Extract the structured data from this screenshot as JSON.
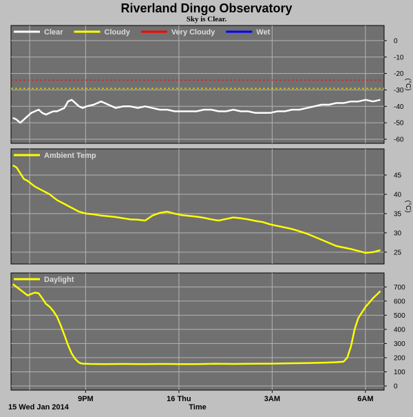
{
  "page": {
    "title": "Riverland Dingo Observatory",
    "subtitle": "Sky is Clear."
  },
  "colors": {
    "plot_bg": "#707070",
    "page_bg": "#c0c0c0",
    "grid": "#b4b4b4",
    "clear": "#ffffff",
    "cloudy": "#ffff00",
    "very_cloudy": "#ff0000",
    "wet": "#0000ff"
  },
  "x_axis": {
    "label": "Time",
    "start_label": "15 Wed Jan 2014",
    "ticks": [
      {
        "label": "9PM",
        "t": 0.2
      },
      {
        "label": "16 Thu",
        "t": 0.45
      },
      {
        "label": "3AM",
        "t": 0.7
      },
      {
        "label": "6AM",
        "t": 0.95
      }
    ],
    "gridlines": [
      0.05,
      0.2,
      0.45,
      0.7,
      0.95
    ]
  },
  "chart_data": [
    {
      "type": "line",
      "panel": "sky",
      "ylabel": "(°C)",
      "ylim": [
        -60,
        5
      ],
      "yticks": [
        0,
        -10,
        -20,
        -30,
        -40,
        -50,
        -60
      ],
      "legend": [
        {
          "name": "Clear",
          "color": "#ffffff"
        },
        {
          "name": "Cloudy",
          "color": "#ffff00"
        },
        {
          "name": "Very Cloudy",
          "color": "#ff0000"
        },
        {
          "name": "Wet",
          "color": "#0000ff"
        }
      ],
      "thresholds": [
        {
          "name": "Very Cloudy",
          "value": -24,
          "color": "#ff0000"
        },
        {
          "name": "Cloudy",
          "value": -29,
          "color": "#ffff00"
        }
      ],
      "series": [
        {
          "name": "Clear",
          "color": "#ffffff",
          "x": [
            0,
            0.01,
            0.02,
            0.03,
            0.04,
            0.05,
            0.06,
            0.07,
            0.08,
            0.09,
            0.1,
            0.11,
            0.12,
            0.13,
            0.14,
            0.15,
            0.16,
            0.17,
            0.18,
            0.19,
            0.2,
            0.22,
            0.24,
            0.26,
            0.28,
            0.3,
            0.32,
            0.34,
            0.36,
            0.38,
            0.4,
            0.42,
            0.44,
            0.46,
            0.48,
            0.5,
            0.52,
            0.54,
            0.56,
            0.58,
            0.6,
            0.62,
            0.64,
            0.66,
            0.68,
            0.7,
            0.72,
            0.74,
            0.76,
            0.78,
            0.8,
            0.82,
            0.84,
            0.86,
            0.88,
            0.9,
            0.92,
            0.94,
            0.96,
            0.98,
            1.0
          ],
          "values": [
            -47,
            -48,
            -50,
            -48,
            -46,
            -44,
            -43,
            -42,
            -44,
            -45,
            -44,
            -43,
            -43,
            -42,
            -41,
            -37,
            -36,
            -38,
            -40,
            -41,
            -40,
            -39,
            -37,
            -39,
            -41,
            -40,
            -40,
            -41,
            -40,
            -41,
            -42,
            -42,
            -43,
            -43,
            -43,
            -43,
            -42,
            -42,
            -43,
            -43,
            -42,
            -43,
            -43,
            -44,
            -44,
            -44,
            -43,
            -43,
            -42,
            -42,
            -41,
            -40,
            -39,
            -39,
            -38,
            -38,
            -37,
            -37,
            -36,
            -37,
            -36
          ]
        }
      ]
    },
    {
      "type": "line",
      "panel": "ambient",
      "ylabel": "(°C)",
      "ylim": [
        23,
        50
      ],
      "yticks": [
        45,
        40,
        35,
        30,
        25
      ],
      "legend": [
        {
          "name": "Ambient Temp",
          "color": "#ffff00"
        }
      ],
      "series": [
        {
          "name": "Ambient Temp",
          "color": "#ffff00",
          "x": [
            0,
            0.01,
            0.02,
            0.03,
            0.04,
            0.06,
            0.08,
            0.1,
            0.12,
            0.14,
            0.16,
            0.18,
            0.2,
            0.22,
            0.24,
            0.26,
            0.28,
            0.3,
            0.32,
            0.34,
            0.36,
            0.38,
            0.4,
            0.42,
            0.44,
            0.46,
            0.48,
            0.5,
            0.52,
            0.54,
            0.56,
            0.58,
            0.6,
            0.62,
            0.64,
            0.66,
            0.68,
            0.7,
            0.72,
            0.74,
            0.76,
            0.78,
            0.8,
            0.82,
            0.84,
            0.86,
            0.88,
            0.9,
            0.92,
            0.94,
            0.96,
            0.98,
            1.0
          ],
          "values": [
            47.5,
            47,
            45.5,
            44,
            43.5,
            42,
            41,
            40,
            38.5,
            37.5,
            36.5,
            35.5,
            35,
            34.8,
            34.5,
            34.3,
            34.1,
            33.8,
            33.5,
            33.4,
            33.2,
            34.5,
            35.2,
            35.5,
            35.0,
            34.6,
            34.4,
            34.2,
            33.9,
            33.5,
            33.2,
            33.6,
            34.0,
            33.8,
            33.5,
            33.1,
            32.8,
            32.2,
            31.8,
            31.4,
            31.0,
            30.4,
            29.8,
            29.0,
            28.2,
            27.4,
            26.6,
            26.2,
            25.8,
            25.3,
            24.8,
            25.0,
            25.5
          ]
        }
      ]
    },
    {
      "type": "line",
      "panel": "daylight",
      "ylabel": "",
      "ylim": [
        0,
        750
      ],
      "yticks": [
        700,
        600,
        500,
        400,
        300,
        200,
        100,
        0
      ],
      "legend": [
        {
          "name": "Daylight",
          "color": "#ffff00"
        }
      ],
      "series": [
        {
          "name": "Daylight",
          "color": "#ffff00",
          "x": [
            0,
            0.01,
            0.02,
            0.03,
            0.04,
            0.05,
            0.06,
            0.07,
            0.08,
            0.09,
            0.1,
            0.11,
            0.12,
            0.13,
            0.14,
            0.15,
            0.16,
            0.17,
            0.18,
            0.185,
            0.19,
            0.195,
            0.2,
            0.21,
            0.25,
            0.3,
            0.35,
            0.4,
            0.45,
            0.5,
            0.55,
            0.6,
            0.65,
            0.7,
            0.75,
            0.8,
            0.85,
            0.88,
            0.9,
            0.91,
            0.92,
            0.93,
            0.94,
            0.95,
            0.96,
            0.97,
            0.98,
            0.99,
            1.0
          ],
          "values": [
            720,
            700,
            680,
            660,
            640,
            650,
            660,
            655,
            620,
            580,
            560,
            530,
            490,
            430,
            360,
            290,
            230,
            190,
            165,
            160,
            158,
            157,
            157,
            156,
            155,
            156,
            155,
            156,
            155,
            155,
            157,
            156,
            157,
            158,
            160,
            162,
            165,
            168,
            172,
            200,
            280,
            400,
            480,
            520,
            560,
            590,
            620,
            645,
            670
          ]
        }
      ]
    }
  ]
}
